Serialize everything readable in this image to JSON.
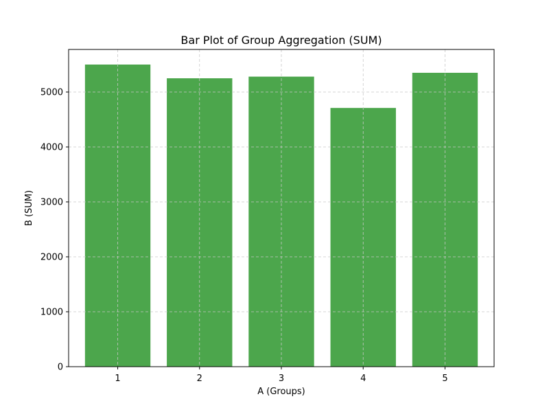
{
  "chart_data": {
    "type": "bar",
    "title": "Bar Plot of Group Aggregation (SUM)",
    "xlabel": "A (Groups)",
    "ylabel": "B (SUM)",
    "categories": [
      "1",
      "2",
      "3",
      "4",
      "5"
    ],
    "values": [
      5500,
      5250,
      5280,
      4710,
      5350
    ],
    "ylim": [
      0,
      5775
    ],
    "yticks": [
      0,
      1000,
      2000,
      3000,
      4000,
      5000
    ],
    "grid": true,
    "bar_color": "#4ca64c",
    "grid_color": "#c7c7c7"
  }
}
